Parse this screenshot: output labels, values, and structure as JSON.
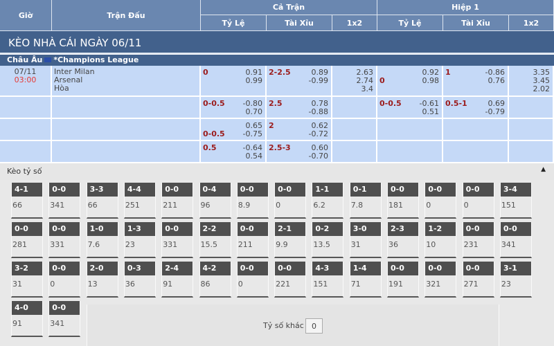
{
  "header": {
    "gio": "Giờ",
    "tran_dau": "Trận Đấu",
    "ca_tran": "Cả Trận",
    "hiep1": "Hiệp 1",
    "ty_le": "Tỷ Lệ",
    "tai_xiu": "Tài Xỉu",
    "x12": "1x2"
  },
  "title": "KÈO NHÀ CÁI NGÀY 06/11",
  "league": {
    "region": "Châu Âu",
    "name": "*Champions League"
  },
  "match": {
    "date": "07/11",
    "time": "03:00",
    "home": "Inter Milan",
    "away": "Arsenal",
    "draw": "Hòa"
  },
  "rows": [
    {
      "ft_hc": "0",
      "ft_hc_line": 0,
      "ft_hc_o": [
        "0.91",
        "0.99"
      ],
      "ft_ou": "2-2.5",
      "ft_ou_o": [
        "0.89",
        "-0.99"
      ],
      "ft_1x2": [
        "2.63",
        "2.74",
        "3.4"
      ],
      "h1_hc": "0",
      "h1_hc_line": 1,
      "h1_hc_o": [
        "0.92",
        "0.98"
      ],
      "h1_ou": "1",
      "h1_ou_o": [
        "-0.86",
        "0.76"
      ],
      "h1_1x2": [
        "3.35",
        "3.45",
        "2.02"
      ]
    },
    {
      "ft_hc": "0-0.5",
      "ft_hc_line": 0,
      "ft_hc_o": [
        "-0.80",
        "0.70"
      ],
      "ft_ou": "2.5",
      "ft_ou_o": [
        "0.78",
        "-0.88"
      ],
      "ft_1x2": [],
      "h1_hc": "0-0.5",
      "h1_hc_line": 0,
      "h1_hc_o": [
        "-0.61",
        "0.51"
      ],
      "h1_ou": "0.5-1",
      "h1_ou_o": [
        "0.69",
        "-0.79"
      ],
      "h1_1x2": []
    },
    {
      "ft_hc": "0-0.5",
      "ft_hc_line": 1,
      "ft_hc_o": [
        "0.65",
        "-0.75"
      ],
      "ft_ou": "2",
      "ft_ou_o": [
        "0.62",
        "-0.72"
      ],
      "ft_1x2": [],
      "h1_hc": "",
      "h1_hc_line": 0,
      "h1_hc_o": [],
      "h1_ou": "",
      "h1_ou_o": [],
      "h1_1x2": []
    },
    {
      "ft_hc": "0.5",
      "ft_hc_line": 0,
      "ft_hc_o": [
        "-0.64",
        "0.54"
      ],
      "ft_ou": "2.5-3",
      "ft_ou_o": [
        "0.60",
        "-0.70"
      ],
      "ft_1x2": [],
      "h1_hc": "",
      "h1_hc_line": 0,
      "h1_hc_o": [],
      "h1_ou": "",
      "h1_ou_o": [],
      "h1_1x2": []
    }
  ],
  "correct_score": {
    "title": "Kèo tỷ số",
    "collapse_icon": "triangle-up-icon",
    "items": [
      [
        "4-1",
        "66"
      ],
      [
        "0-0",
        "341"
      ],
      [
        "3-3",
        "66"
      ],
      [
        "4-4",
        "251"
      ],
      [
        "0-0",
        "211"
      ],
      [
        "0-4",
        "96"
      ],
      [
        "0-0",
        "8.9"
      ],
      [
        "0-0",
        "0"
      ],
      [
        "1-1",
        "6.2"
      ],
      [
        "0-1",
        "7.8"
      ],
      [
        "0-0",
        "181"
      ],
      [
        "0-0",
        "0"
      ],
      [
        "0-0",
        "0"
      ],
      [
        "3-4",
        "151"
      ],
      [
        "0-0",
        "281"
      ],
      [
        "0-0",
        "331"
      ],
      [
        "1-0",
        "7.6"
      ],
      [
        "1-3",
        "23"
      ],
      [
        "0-0",
        "331"
      ],
      [
        "2-2",
        "15.5"
      ],
      [
        "0-0",
        "211"
      ],
      [
        "2-1",
        "9.9"
      ],
      [
        "0-2",
        "13.5"
      ],
      [
        "3-0",
        "31"
      ],
      [
        "2-3",
        "36"
      ],
      [
        "1-2",
        "10"
      ],
      [
        "0-0",
        "231"
      ],
      [
        "0-0",
        "341"
      ],
      [
        "3-2",
        "31"
      ],
      [
        "0-0",
        "0"
      ],
      [
        "2-0",
        "13"
      ],
      [
        "0-3",
        "36"
      ],
      [
        "2-4",
        "91"
      ],
      [
        "4-2",
        "86"
      ],
      [
        "0-0",
        "0"
      ],
      [
        "0-0",
        "221"
      ],
      [
        "4-3",
        "151"
      ],
      [
        "1-4",
        "71"
      ],
      [
        "0-0",
        "191"
      ],
      [
        "0-0",
        "321"
      ],
      [
        "0-0",
        "271"
      ],
      [
        "3-1",
        "23"
      ],
      [
        "4-0",
        "91"
      ],
      [
        "0-0",
        "341"
      ]
    ],
    "other_label": "Tỷ số khác",
    "other_value": "0"
  }
}
